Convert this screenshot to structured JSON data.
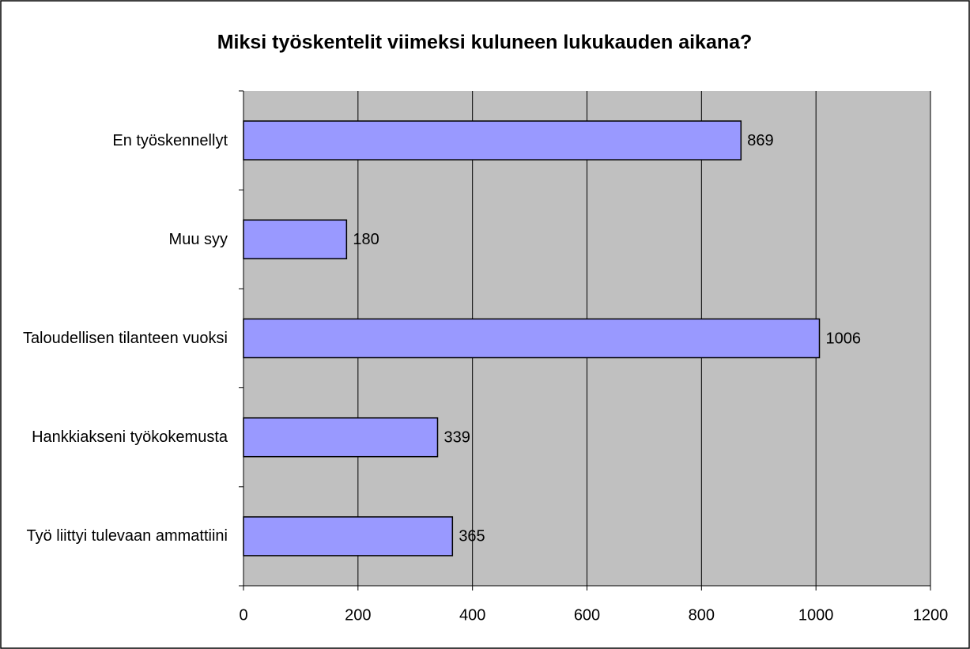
{
  "chart_data": {
    "type": "barh",
    "title": "Miksi työskentelit viimeksi kuluneen lukukauden aikana?",
    "categories": [
      "En työskennellyt",
      "Muu syy",
      "Taloudellisen tilanteen vuoksi",
      "Hankkiakseni työkokemusta",
      "Työ liittyi tulevaan ammattiini"
    ],
    "values": [
      869,
      180,
      1006,
      339,
      365
    ],
    "color": "#9999ff",
    "xlim": [
      0,
      1200
    ],
    "xticks": [
      0,
      200,
      400,
      600,
      800,
      1000,
      1200
    ],
    "grid": true
  }
}
